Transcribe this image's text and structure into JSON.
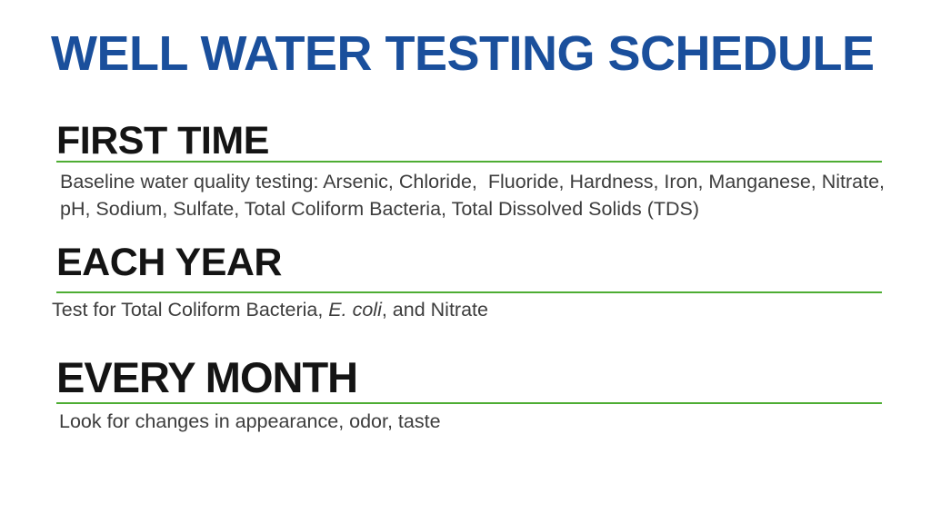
{
  "theme": {
    "background": "#FFFFFF",
    "title_blue": "#1A4F9C",
    "heading_black": "#141414",
    "body_gray": "#3D3D3D",
    "divider_green": "#4EAD33"
  },
  "page": {
    "title": "WELL WATER TESTING SCHEDULE"
  },
  "sections": [
    {
      "id": "first-time",
      "heading": "FIRST TIME",
      "body_lines": [
        "Baseline water quality testing: Arsenic, Chloride,  Fluoride, Hardness, Iron, Manganese, Nitrate,",
        "pH, Sodium, Sulfate, Total Coliform Bacteria, Total Dissolved Solids (TDS)"
      ]
    },
    {
      "id": "each-year",
      "heading": "EACH YEAR",
      "body": {
        "prefix": "Test for Total Coliform Bacteria, ",
        "italic_species": "E. coli",
        "suffix": ", and Nitrate"
      }
    },
    {
      "id": "every-month",
      "heading": "EVERY MONTH",
      "body_lines": [
        "Look for changes in appearance, odor, taste"
      ]
    }
  ]
}
